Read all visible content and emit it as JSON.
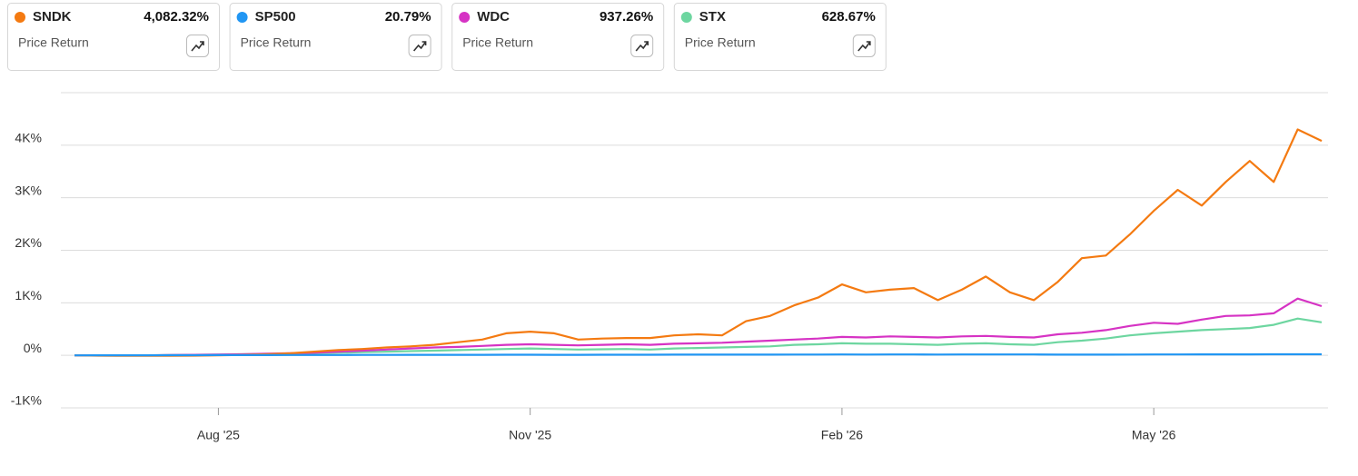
{
  "chart_data": {
    "type": "line",
    "categories": [
      null,
      null,
      null,
      null,
      null,
      null,
      "Aug '25",
      null,
      null,
      null,
      null,
      null,
      null,
      null,
      null,
      null,
      null,
      null,
      null,
      "Nov '25",
      null,
      null,
      null,
      null,
      null,
      null,
      null,
      null,
      null,
      null,
      null,
      null,
      "Feb '26",
      null,
      null,
      null,
      null,
      null,
      null,
      null,
      null,
      null,
      null,
      null,
      null,
      "May '26",
      null,
      null,
      null,
      null,
      null,
      null,
      null
    ],
    "ylim": [
      -1000,
      5000
    ],
    "yticks": [
      {
        "value": -1000,
        "label": "-1K%"
      },
      {
        "value": 0,
        "label": "0%"
      },
      {
        "value": 1000,
        "label": "1K%"
      },
      {
        "value": 2000,
        "label": "2K%"
      },
      {
        "value": 3000,
        "label": "3K%"
      },
      {
        "value": 4000,
        "label": "4K%"
      }
    ],
    "grid": true,
    "series": [
      {
        "name": "SNDK",
        "color": "#f47a11",
        "metric": "Price Return",
        "values": [
          0,
          -5,
          -10,
          -10,
          -10,
          -5,
          0,
          10,
          20,
          40,
          70,
          100,
          120,
          150,
          170,
          200,
          250,
          300,
          420,
          450,
          420,
          300,
          320,
          330,
          330,
          380,
          400,
          380,
          650,
          750,
          950,
          1100,
          1350,
          1200,
          1250,
          1280,
          1050,
          1250,
          1500,
          1200,
          1050,
          1400,
          1850,
          1900,
          2300,
          2750,
          3150,
          2850,
          3300,
          3700,
          3300,
          4300,
          4082.32
        ],
        "value_labels": [
          null,
          null,
          null,
          null,
          null,
          null,
          null,
          null,
          null,
          null,
          null,
          null,
          null,
          null,
          null,
          null,
          null,
          null,
          null,
          null,
          null,
          null,
          null,
          null,
          null,
          null,
          null,
          null,
          null,
          null,
          null,
          null,
          null,
          null,
          null,
          null,
          null,
          null,
          null,
          null,
          null,
          null,
          null,
          null,
          null,
          null,
          null,
          null,
          null,
          null,
          null,
          null,
          "4,082.32%"
        ]
      },
      {
        "name": "SP500",
        "color": "#2196f3",
        "metric": "Price Return",
        "values": [
          0,
          1,
          2,
          2,
          3,
          3,
          4,
          5,
          5,
          6,
          6,
          7,
          8,
          8,
          9,
          9,
          10,
          10,
          11,
          11,
          10,
          10,
          11,
          12,
          12,
          13,
          13,
          14,
          14,
          14,
          15,
          15,
          16,
          15,
          16,
          16,
          15,
          16,
          17,
          17,
          16,
          14,
          13,
          14,
          15,
          16,
          17,
          18,
          18,
          19,
          20,
          21,
          20.79
        ],
        "value_labels": [
          null,
          null,
          null,
          null,
          null,
          null,
          null,
          null,
          null,
          null,
          null,
          null,
          null,
          null,
          null,
          null,
          null,
          null,
          null,
          null,
          null,
          null,
          null,
          null,
          null,
          null,
          null,
          null,
          null,
          null,
          null,
          null,
          null,
          null,
          null,
          null,
          null,
          null,
          null,
          null,
          null,
          null,
          null,
          null,
          null,
          null,
          null,
          null,
          null,
          null,
          null,
          null,
          "20.79%"
        ]
      },
      {
        "name": "WDC",
        "color": "#d633c4",
        "metric": "Price Return",
        "values": [
          0,
          0,
          0,
          0,
          5,
          10,
          15,
          20,
          30,
          40,
          50,
          70,
          90,
          110,
          130,
          150,
          160,
          180,
          200,
          210,
          200,
          190,
          200,
          210,
          200,
          220,
          230,
          240,
          260,
          280,
          300,
          320,
          350,
          340,
          360,
          350,
          340,
          360,
          370,
          350,
          340,
          400,
          430,
          480,
          560,
          620,
          600,
          680,
          750,
          760,
          800,
          1080,
          937.26
        ],
        "value_labels": [
          null,
          null,
          null,
          null,
          null,
          null,
          null,
          null,
          null,
          null,
          null,
          null,
          null,
          null,
          null,
          null,
          null,
          null,
          null,
          null,
          null,
          null,
          null,
          null,
          null,
          null,
          null,
          null,
          null,
          null,
          null,
          null,
          null,
          null,
          null,
          null,
          null,
          null,
          null,
          null,
          null,
          null,
          null,
          null,
          null,
          null,
          null,
          null,
          null,
          null,
          null,
          null,
          "937.26%"
        ]
      },
      {
        "name": "STX",
        "color": "#6dd6a0",
        "metric": "Price Return",
        "values": [
          0,
          0,
          0,
          0,
          5,
          10,
          15,
          20,
          25,
          30,
          40,
          50,
          60,
          70,
          80,
          90,
          100,
          110,
          120,
          130,
          120,
          110,
          115,
          120,
          110,
          130,
          140,
          150,
          160,
          170,
          200,
          210,
          230,
          220,
          220,
          210,
          200,
          220,
          230,
          210,
          200,
          250,
          280,
          320,
          380,
          420,
          450,
          480,
          500,
          520,
          580,
          700,
          628.67
        ],
        "value_labels": [
          null,
          null,
          null,
          null,
          null,
          null,
          null,
          null,
          null,
          null,
          null,
          null,
          null,
          null,
          null,
          null,
          null,
          null,
          null,
          null,
          null,
          null,
          null,
          null,
          null,
          null,
          null,
          null,
          null,
          null,
          null,
          null,
          null,
          null,
          null,
          null,
          null,
          null,
          null,
          null,
          null,
          null,
          null,
          null,
          null,
          null,
          null,
          null,
          null,
          null,
          null,
          null,
          "628.67%"
        ]
      }
    ]
  }
}
